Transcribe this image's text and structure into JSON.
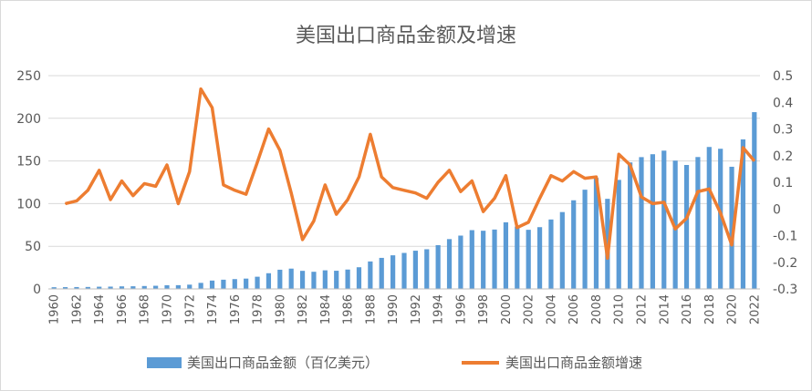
{
  "chart_data": {
    "type": "bar+line",
    "title": "美国出口商品金额及增速",
    "x": [
      1960,
      1961,
      1962,
      1963,
      1964,
      1965,
      1966,
      1967,
      1968,
      1969,
      1970,
      1971,
      1972,
      1973,
      1974,
      1975,
      1976,
      1977,
      1978,
      1979,
      1980,
      1981,
      1982,
      1983,
      1984,
      1985,
      1986,
      1987,
      1988,
      1989,
      1990,
      1991,
      1992,
      1993,
      1994,
      1995,
      1996,
      1997,
      1998,
      1999,
      2000,
      2001,
      2002,
      2003,
      2004,
      2005,
      2006,
      2007,
      2008,
      2009,
      2010,
      2011,
      2012,
      2013,
      2014,
      2015,
      2016,
      2017,
      2018,
      2019,
      2020,
      2021,
      2022
    ],
    "x_tick_labels": [
      "1960",
      "1962",
      "1964",
      "1966",
      "1968",
      "1970",
      "1972",
      "1974",
      "1976",
      "1978",
      "1980",
      "1982",
      "1984",
      "1986",
      "1988",
      "1990",
      "1992",
      "1994",
      "1996",
      "1998",
      "2000",
      "2002",
      "2004",
      "2006",
      "2008",
      "2010",
      "2012",
      "2014",
      "2016",
      "2018",
      "2020",
      "2022"
    ],
    "y_left": {
      "lim": [
        0,
        250
      ],
      "ticks": [
        "0",
        "50",
        "100",
        "150",
        "200",
        "250"
      ]
    },
    "y_right": {
      "lim": [
        -0.3,
        0.5
      ],
      "ticks": [
        "-0.3",
        "-0.2",
        "-0.1",
        "0",
        "0.1",
        "0.2",
        "0.3",
        "0.4",
        "0.5"
      ]
    },
    "grid": "horizontal",
    "legend_position": "bottom",
    "series": [
      {
        "name": "美国出口商品金额（百亿美元）",
        "type": "bar",
        "axis": "left",
        "color": "#5b9bd5",
        "values": [
          2.0,
          2.1,
          2.2,
          2.3,
          2.6,
          2.7,
          3.0,
          3.1,
          3.4,
          3.7,
          4.3,
          4.4,
          5.0,
          7.1,
          9.8,
          10.8,
          11.5,
          12.1,
          14.3,
          18.4,
          22.5,
          23.8,
          21.2,
          20.1,
          21.8,
          21.3,
          22.7,
          25.4,
          32.2,
          36.4,
          39.4,
          42.2,
          44.8,
          46.5,
          51.3,
          58.4,
          62.5,
          68.9,
          68.2,
          69.6,
          78.1,
          73.1,
          69.3,
          72.4,
          81.4,
          90.1,
          103.9,
          116.3,
          130.1,
          105.6,
          127.8,
          148.3,
          154.5,
          157.9,
          162.1,
          150.4,
          145.3,
          154.6,
          166.4,
          164.3,
          143.2,
          175.3,
          207.2
        ]
      },
      {
        "name": "美国出口商品金额增速",
        "type": "line",
        "axis": "right",
        "color": "#ed7d31",
        "values": [
          null,
          0.02,
          0.03,
          0.07,
          0.145,
          0.035,
          0.105,
          0.05,
          0.095,
          0.085,
          0.165,
          0.02,
          0.14,
          0.45,
          0.38,
          0.09,
          0.07,
          0.055,
          0.175,
          0.3,
          0.22,
          0.06,
          -0.115,
          -0.045,
          0.09,
          -0.02,
          0.035,
          0.12,
          0.28,
          0.12,
          0.08,
          0.07,
          0.06,
          0.04,
          0.1,
          0.145,
          0.065,
          0.105,
          -0.01,
          0.04,
          0.125,
          -0.07,
          -0.05,
          0.04,
          0.125,
          0.105,
          0.14,
          0.115,
          0.12,
          -0.185,
          0.205,
          0.165,
          0.045,
          0.02,
          0.025,
          -0.075,
          -0.035,
          0.065,
          0.075,
          -0.015,
          -0.135,
          0.23,
          0.18
        ]
      }
    ]
  }
}
